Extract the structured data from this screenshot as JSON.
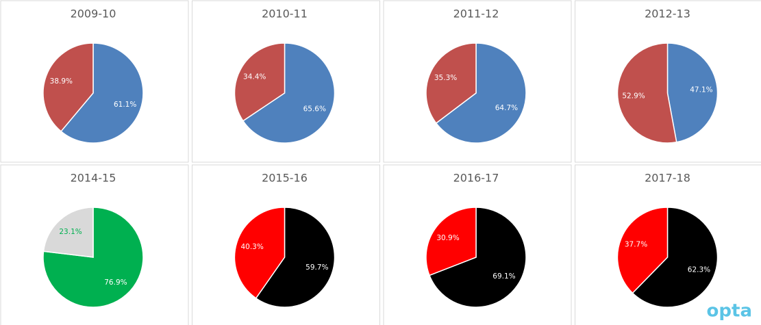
{
  "chart_data": [
    {
      "type": "pie",
      "title": "2009-10",
      "values": [
        61.1,
        38.9
      ],
      "value_labels": [
        "61.1%",
        "38.9%"
      ],
      "colors": [
        "#4f81bd",
        "#c0504d"
      ],
      "label_colors": [
        "#ffffff",
        "#ffffff"
      ]
    },
    {
      "type": "pie",
      "title": "2010-11",
      "values": [
        65.6,
        34.4
      ],
      "value_labels": [
        "65.6%",
        "34.4%"
      ],
      "colors": [
        "#4f81bd",
        "#c0504d"
      ],
      "label_colors": [
        "#ffffff",
        "#ffffff"
      ]
    },
    {
      "type": "pie",
      "title": "2011-12",
      "values": [
        64.7,
        35.3
      ],
      "value_labels": [
        "64.7%",
        "35.3%"
      ],
      "colors": [
        "#4f81bd",
        "#c0504d"
      ],
      "label_colors": [
        "#ffffff",
        "#ffffff"
      ]
    },
    {
      "type": "pie",
      "title": "2012-13",
      "values": [
        47.1,
        52.9
      ],
      "value_labels": [
        "47.1%",
        "52.9%"
      ],
      "colors": [
        "#4f81bd",
        "#c0504d"
      ],
      "label_colors": [
        "#ffffff",
        "#ffffff"
      ]
    },
    {
      "type": "pie",
      "title": "2014-15",
      "values": [
        76.9,
        23.1
      ],
      "value_labels": [
        "76.9%",
        "23.1%"
      ],
      "colors": [
        "#00b050",
        "#d9d9d9"
      ],
      "label_colors": [
        "#ffffff",
        "#00b050"
      ]
    },
    {
      "type": "pie",
      "title": "2015-16",
      "values": [
        59.7,
        40.3
      ],
      "value_labels": [
        "59.7%",
        "40.3%"
      ],
      "colors": [
        "#000000",
        "#ff0000"
      ],
      "label_colors": [
        "#ffffff",
        "#ffffff"
      ]
    },
    {
      "type": "pie",
      "title": "2016-17",
      "values": [
        69.1,
        30.9
      ],
      "value_labels": [
        "69.1%",
        "30.9%"
      ],
      "colors": [
        "#000000",
        "#ff0000"
      ],
      "label_colors": [
        "#ffffff",
        "#ffffff"
      ]
    },
    {
      "type": "pie",
      "title": "2017-18",
      "values": [
        62.3,
        37.7
      ],
      "value_labels": [
        "62.3%",
        "37.7%"
      ],
      "colors": [
        "#000000",
        "#ff0000"
      ],
      "label_colors": [
        "#ffffff",
        "#ffffff"
      ]
    }
  ],
  "brand": "opta"
}
